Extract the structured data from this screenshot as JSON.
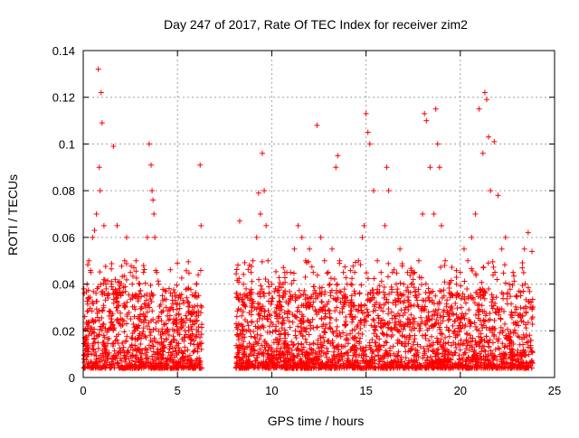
{
  "chart_data": {
    "type": "scatter",
    "title": "Day 247 of 2017, Rate Of TEC Index for receiver zim2",
    "xlabel": "GPS time / hours",
    "ylabel": "ROTI / TECUs",
    "xlim": [
      0,
      25
    ],
    "ylim": [
      0,
      0.14
    ],
    "xticks": [
      0,
      5,
      10,
      15,
      20,
      25
    ],
    "xtick_labels": [
      "0",
      "5",
      "10",
      "15",
      "20",
      "25"
    ],
    "yticks": [
      0,
      0.02,
      0.04,
      0.06,
      0.08,
      0.1,
      0.12,
      0.14
    ],
    "ytick_labels": [
      "0",
      "0.02",
      "0.04",
      "0.06",
      "0.08",
      "0.1",
      "0.12",
      "0.14"
    ],
    "grid": true,
    "marker": "+",
    "color": "#ff0000",
    "data_gap_hours": [
      6.3,
      8.1
    ],
    "series": [
      {
        "x": [
          0.05,
          0.2,
          0.3,
          0.4,
          0.5,
          0.6,
          0.7,
          0.8,
          0.85,
          0.9,
          0.95,
          1.0,
          1.1,
          1.2,
          1.3,
          1.5,
          1.6,
          1.7,
          1.8,
          1.9,
          2.0,
          2.2,
          2.3,
          2.5,
          2.6,
          2.8,
          3.0,
          3.2,
          3.4,
          3.5,
          3.6,
          3.65,
          3.7,
          3.75,
          3.8,
          3.9,
          4.0,
          4.2,
          4.4,
          4.6,
          4.8,
          5.0,
          5.2,
          5.4,
          5.6,
          5.8,
          5.9,
          6.0,
          6.1,
          6.2,
          6.25,
          8.3,
          8.5,
          8.7,
          8.9,
          9.0,
          9.2,
          9.3,
          9.4,
          9.5,
          9.6,
          9.7,
          9.8,
          10.0,
          10.2,
          10.4,
          10.6,
          10.8,
          11.0,
          11.2,
          11.4,
          11.6,
          11.8,
          12.0,
          12.2,
          12.4,
          12.6,
          12.8,
          13.0,
          13.2,
          13.4,
          13.5,
          13.6,
          13.8,
          14.0,
          14.2,
          14.4,
          14.6,
          14.8,
          14.9,
          15.0,
          15.1,
          15.2,
          15.4,
          15.6,
          15.8,
          16.0,
          16.1,
          16.2,
          16.4,
          16.6,
          16.8,
          17.0,
          17.2,
          17.4,
          17.6,
          17.8,
          18.0,
          18.1,
          18.2,
          18.4,
          18.6,
          18.7,
          18.8,
          18.9,
          19.0,
          19.2,
          19.4,
          19.6,
          19.8,
          20.0,
          20.2,
          20.4,
          20.6,
          20.8,
          21.0,
          21.2,
          21.3,
          21.4,
          21.5,
          21.6,
          21.8,
          22.0,
          22.2,
          22.4,
          22.6,
          22.8,
          23.0,
          23.2,
          23.4,
          23.6,
          23.8
        ],
        "y": [
          0.036,
          0.04,
          0.05,
          0.045,
          0.06,
          0.063,
          0.07,
          0.132,
          0.09,
          0.08,
          0.122,
          0.109,
          0.065,
          0.04,
          0.035,
          0.04,
          0.099,
          0.042,
          0.065,
          0.038,
          0.035,
          0.05,
          0.06,
          0.045,
          0.04,
          0.05,
          0.04,
          0.045,
          0.06,
          0.1,
          0.091,
          0.08,
          0.076,
          0.07,
          0.06,
          0.045,
          0.04,
          0.035,
          0.03,
          0.025,
          0.025,
          0.02,
          0.025,
          0.02,
          0.02,
          0.03,
          0.035,
          0.04,
          0.044,
          0.091,
          0.065,
          0.067,
          0.04,
          0.035,
          0.045,
          0.05,
          0.06,
          0.079,
          0.07,
          0.096,
          0.08,
          0.065,
          0.05,
          0.04,
          0.038,
          0.035,
          0.04,
          0.045,
          0.045,
          0.055,
          0.065,
          0.06,
          0.05,
          0.055,
          0.045,
          0.108,
          0.06,
          0.05,
          0.045,
          0.055,
          0.09,
          0.095,
          0.05,
          0.045,
          0.04,
          0.04,
          0.045,
          0.05,
          0.06,
          0.065,
          0.113,
          0.105,
          0.1,
          0.08,
          0.05,
          0.045,
          0.065,
          0.09,
          0.08,
          0.045,
          0.04,
          0.055,
          0.04,
          0.045,
          0.04,
          0.035,
          0.05,
          0.07,
          0.113,
          0.11,
          0.09,
          0.07,
          0.115,
          0.1,
          0.09,
          0.065,
          0.05,
          0.04,
          0.035,
          0.04,
          0.045,
          0.055,
          0.05,
          0.06,
          0.07,
          0.115,
          0.096,
          0.122,
          0.119,
          0.103,
          0.08,
          0.101,
          0.078,
          0.055,
          0.06,
          0.04,
          0.045,
          0.035,
          0.035,
          0.055,
          0.062,
          0.054
        ]
      }
    ]
  }
}
